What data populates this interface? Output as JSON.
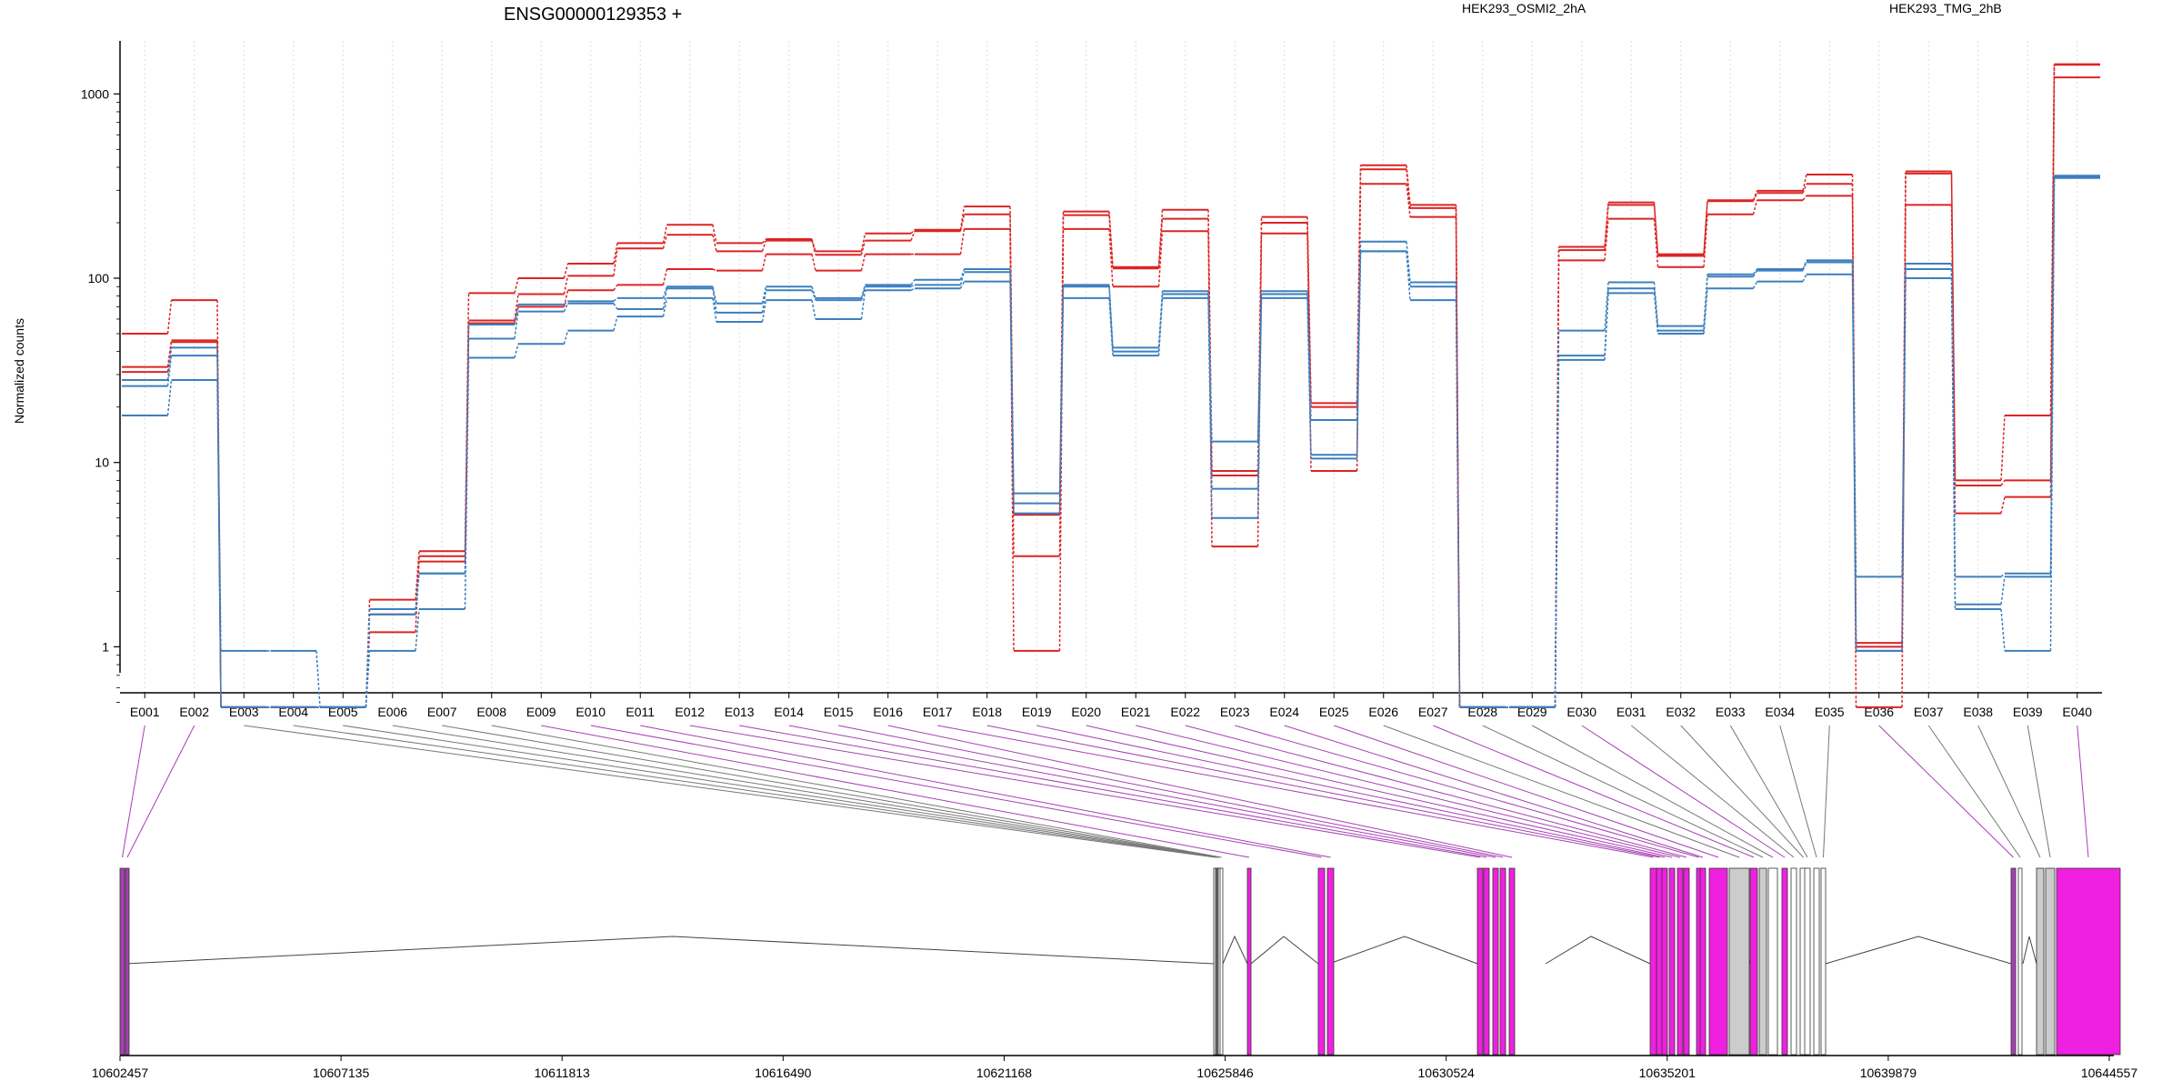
{
  "chart_data": {
    "type": "line",
    "title": "ENSG00000129353 +",
    "ylabel": "Normalized counts",
    "yscale": "log",
    "yticks": [
      1,
      10,
      100,
      1000
    ],
    "ylim": [
      0.5,
      2000
    ],
    "categories": [
      "E001",
      "E002",
      "E003",
      "E004",
      "E005",
      "E006",
      "E007",
      "E008",
      "E009",
      "E010",
      "E011",
      "E012",
      "E013",
      "E014",
      "E015",
      "E016",
      "E017",
      "E018",
      "E019",
      "E020",
      "E021",
      "E022",
      "E023",
      "E024",
      "E025",
      "E026",
      "E027",
      "E028",
      "E029",
      "E030",
      "E031",
      "E032",
      "E033",
      "E034",
      "E035",
      "E036",
      "E037",
      "E038",
      "E039",
      "E040"
    ],
    "legend": [
      {
        "label": "HEK293_OSMI2_2hA",
        "color": "#dc2424"
      },
      {
        "label": "HEK293_TMG_2hB",
        "color": "#3c7fbe"
      }
    ],
    "series": [
      {
        "group": "HEK293_OSMI2_2hA",
        "color": "#dc2424",
        "values": [
          50,
          76,
          0.47,
          0.47,
          0.47,
          1.8,
          3.3,
          83,
          100,
          120,
          155,
          195,
          155,
          163,
          140,
          175,
          183,
          245,
          5.2,
          230,
          115,
          235,
          9,
          215,
          21,
          410,
          250,
          0.47,
          0.47,
          148,
          258,
          135,
          265,
          298,
          365,
          1.05,
          380,
          8,
          18,
          1450
        ]
      },
      {
        "group": "HEK293_OSMI2_2hA",
        "color": "#dc2424",
        "values": [
          33,
          46,
          0.47,
          0.47,
          0.47,
          1.5,
          3.1,
          59,
          82,
          103,
          145,
          172,
          140,
          160,
          134,
          160,
          180,
          222,
          3.1,
          220,
          113,
          210,
          8.5,
          200,
          20,
          390,
          240,
          0.47,
          0.47,
          142,
          250,
          132,
          262,
          290,
          325,
          1.0,
          370,
          7.5,
          8,
          1440
        ]
      },
      {
        "group": "HEK293_OSMI2_2hA",
        "color": "#dc2424",
        "values": [
          31,
          45,
          0.47,
          0.47,
          0.47,
          1.2,
          2.9,
          57,
          70,
          86,
          92,
          112,
          110,
          135,
          110,
          135,
          135,
          185,
          0.95,
          185,
          90,
          180,
          3.5,
          175,
          9,
          325,
          215,
          0.47,
          0.47,
          125,
          210,
          115,
          222,
          265,
          280,
          0.47,
          250,
          5.3,
          6.5,
          1230
        ]
      },
      {
        "group": "HEK293_TMG_2hB",
        "color": "#3c7fbe",
        "values": [
          28,
          42,
          0.95,
          0.95,
          0.47,
          1.6,
          2.5,
          56,
          72,
          75,
          78,
          90,
          73,
          90,
          78,
          92,
          98,
          112,
          6.8,
          92,
          42,
          85,
          13,
          85,
          17,
          158,
          95,
          0.47,
          0.47,
          52,
          95,
          55,
          105,
          112,
          125,
          2.4,
          120,
          2.4,
          2.5,
          360
        ]
      },
      {
        "group": "HEK293_TMG_2hB",
        "color": "#3c7fbe",
        "values": [
          26,
          38,
          0.47,
          0.47,
          0.47,
          1.5,
          2.5,
          47,
          66,
          73,
          68,
          88,
          65,
          86,
          76,
          90,
          92,
          108,
          6.0,
          90,
          40,
          82,
          7.2,
          82,
          11,
          140,
          90,
          0.47,
          0.47,
          38,
          88,
          52,
          102,
          110,
          122,
          0.95,
          112,
          1.7,
          2.4,
          355
        ]
      },
      {
        "group": "HEK293_TMG_2hB",
        "color": "#3c7fbe",
        "values": [
          18,
          28,
          0.47,
          0.47,
          0.47,
          0.95,
          1.6,
          37,
          44,
          52,
          62,
          78,
          58,
          76,
          60,
          86,
          88,
          96,
          5.3,
          78,
          38,
          78,
          5.0,
          78,
          10.5,
          140,
          76,
          0.47,
          0.47,
          36,
          83,
          50,
          88,
          96,
          105,
          0.95,
          100,
          1.6,
          0.95,
          350
        ]
      }
    ],
    "connector_colors": [
      "#a63fb3",
      "#a63fb3",
      "#777777",
      "#777777",
      "#777777",
      "#777777",
      "#777777",
      "#777777",
      "#a63fb3",
      "#a63fb3",
      "#a63fb3",
      "#a63fb3",
      "#a63fb3",
      "#a63fb3",
      "#a63fb3",
      "#a63fb3",
      "#a63fb3",
      "#a63fb3",
      "#a63fb3",
      "#a63fb3",
      "#a63fb3",
      "#a63fb3",
      "#a63fb3",
      "#a63fb3",
      "#a63fb3",
      "#777777",
      "#a63fb3",
      "#777777",
      "#777777",
      "#a63fb3",
      "#777777",
      "#777777",
      "#777777",
      "#777777",
      "#777777",
      "#a63fb3",
      "#777777",
      "#777777",
      "#777777",
      "#a63fb3"
    ],
    "gene_model": {
      "axis_ticks": [
        "10602457",
        "10607135",
        "10611813",
        "10616490",
        "10621168",
        "10625846",
        "10630524",
        "10635201",
        "10639879",
        "10644557"
      ],
      "exon_colors": {
        "differential": "#f020e0",
        "neutral": "#cccccc"
      }
    }
  }
}
